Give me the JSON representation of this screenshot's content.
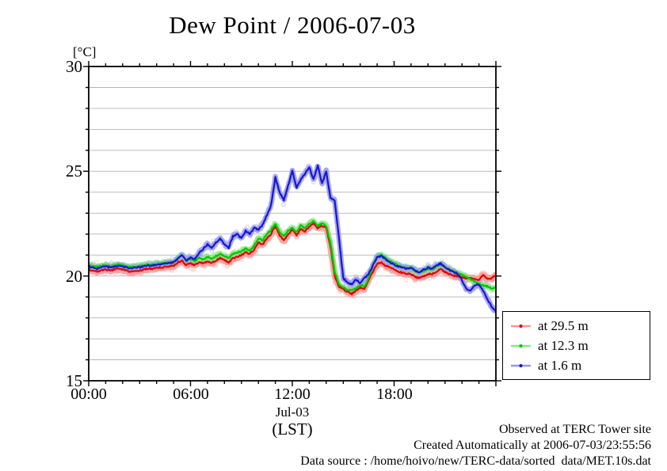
{
  "title": "Dew Point / 2006-07-03",
  "axis": {
    "unit_label": "[°C]",
    "y_ticks": [
      "30",
      "25",
      "20",
      "15"
    ],
    "x_ticks": [
      "00:00",
      "06:00",
      "12:00",
      "18:00"
    ],
    "x_date_label": "Jul-03",
    "x_tz_label": "(LST)"
  },
  "legend": [
    {
      "label": "at 29.5 m"
    },
    {
      "label": "at 12.3 m"
    },
    {
      "label": "at 1.6 m"
    }
  ],
  "footer": {
    "line1": "Observed at TERC Tower site",
    "line2": "Created Automatically at 2006-07-03/23:55:56",
    "line3": "Data source : /home/hoivo/new/TERC-data/sorted  data/MET.10s.dat"
  },
  "chart_data": {
    "type": "line",
    "title": "Dew Point / 2006-07-03",
    "ylabel": "[°C]",
    "xlabel": "Jul-03 (LST)",
    "ylim": [
      15,
      30
    ],
    "xlim_hours": [
      0,
      24
    ],
    "y_major_ticks": [
      15,
      20,
      25,
      30
    ],
    "y_minor_step": 1,
    "x_major_ticks_hours": [
      0,
      6,
      12,
      18,
      24
    ],
    "x_minor_step_hours": 1,
    "grid": "horizontal gridlines every 1 degC",
    "legend_position": "outside-bottom-right",
    "background": "#ffffff",
    "grid_color": "#b4b4b4",
    "frame_color": "#000000",
    "x_hours": [
      0,
      0.25,
      0.5,
      0.75,
      1,
      1.25,
      1.5,
      1.75,
      2,
      2.25,
      2.5,
      2.75,
      3,
      3.25,
      3.5,
      3.75,
      4,
      4.25,
      4.5,
      4.75,
      5,
      5.25,
      5.5,
      5.75,
      6,
      6.25,
      6.5,
      6.75,
      7,
      7.25,
      7.5,
      7.75,
      8,
      8.25,
      8.5,
      8.75,
      9,
      9.25,
      9.5,
      9.75,
      10,
      10.25,
      10.5,
      10.75,
      11,
      11.25,
      11.5,
      11.75,
      12,
      12.25,
      12.5,
      12.75,
      13,
      13.25,
      13.5,
      13.75,
      14,
      14.25,
      14.5,
      14.75,
      15,
      15.25,
      15.5,
      15.75,
      16,
      16.25,
      16.5,
      16.75,
      17,
      17.25,
      17.5,
      17.75,
      18,
      18.25,
      18.5,
      18.75,
      19,
      19.25,
      19.5,
      19.75,
      20,
      20.25,
      20.5,
      20.75,
      21,
      21.25,
      21.5,
      21.75,
      22,
      22.25,
      22.5,
      22.75,
      23,
      23.25,
      23.5,
      23.75,
      24
    ],
    "series": [
      {
        "name": "at 29.5 m",
        "color": "#e40000",
        "scatter_color": "#ff9393",
        "band_width": 8,
        "scatter_spread": 0.24,
        "values": [
          20.3,
          20.26,
          20.22,
          20.28,
          20.32,
          20.26,
          20.3,
          20.35,
          20.3,
          20.25,
          20.2,
          20.24,
          20.26,
          20.32,
          20.35,
          20.35,
          20.4,
          20.4,
          20.44,
          20.46,
          20.48,
          20.65,
          20.72,
          20.52,
          20.6,
          20.52,
          20.65,
          20.6,
          20.72,
          20.62,
          20.75,
          20.85,
          20.75,
          20.65,
          20.85,
          20.9,
          21.0,
          21.12,
          21.05,
          21.25,
          21.6,
          21.5,
          21.8,
          22.0,
          22.4,
          21.95,
          21.7,
          22.0,
          22.2,
          21.95,
          22.25,
          22.15,
          22.35,
          22.5,
          22.3,
          22.4,
          22.3,
          21.4,
          20.0,
          19.5,
          19.35,
          19.25,
          19.15,
          19.3,
          19.45,
          19.4,
          19.8,
          20.2,
          20.6,
          20.65,
          20.5,
          20.4,
          20.3,
          20.2,
          20.15,
          20.1,
          20.1,
          19.95,
          19.92,
          20.0,
          20.1,
          20.08,
          20.22,
          20.32,
          20.2,
          20.1,
          20.02,
          19.98,
          19.95,
          19.9,
          19.88,
          19.85,
          19.8,
          20.05,
          19.85,
          19.9,
          20.05
        ]
      },
      {
        "name": "at 12.3 m",
        "color": "#00c800",
        "scatter_color": "#86e886",
        "band_width": 6.5,
        "scatter_spread": 0.15,
        "values": [
          20.5,
          20.46,
          20.42,
          20.48,
          20.52,
          20.46,
          20.5,
          20.55,
          20.5,
          20.45,
          20.42,
          20.46,
          20.48,
          20.52,
          20.55,
          20.55,
          20.58,
          20.58,
          20.62,
          20.64,
          20.66,
          20.85,
          21.0,
          20.72,
          20.82,
          20.72,
          20.85,
          20.8,
          20.92,
          20.82,
          20.95,
          21.05,
          20.95,
          20.85,
          21.05,
          21.1,
          21.18,
          21.3,
          21.22,
          21.45,
          21.8,
          21.7,
          22.0,
          22.2,
          22.5,
          22.1,
          21.9,
          22.15,
          22.3,
          22.1,
          22.4,
          22.3,
          22.5,
          22.6,
          22.4,
          22.5,
          22.4,
          21.6,
          20.2,
          19.6,
          19.45,
          19.35,
          19.3,
          19.4,
          19.55,
          19.5,
          19.9,
          20.5,
          20.95,
          21.0,
          20.85,
          20.7,
          20.6,
          20.5,
          20.42,
          20.38,
          20.4,
          20.22,
          20.18,
          20.26,
          20.35,
          20.3,
          20.45,
          20.55,
          20.42,
          20.3,
          20.22,
          20.15,
          20.05,
          19.95,
          19.85,
          19.75,
          19.6,
          19.55,
          19.5,
          19.4,
          19.45
        ]
      },
      {
        "name": "at 1.6 m",
        "color": "#1616d2",
        "scatter_color": "#9696ee",
        "band_width": 6.5,
        "scatter_spread": 0.18,
        "values": [
          20.45,
          20.4,
          20.35,
          20.42,
          20.46,
          20.4,
          20.44,
          20.5,
          20.46,
          20.4,
          20.36,
          20.4,
          20.42,
          20.46,
          20.5,
          20.5,
          20.55,
          20.55,
          20.6,
          20.62,
          20.65,
          20.82,
          21.0,
          20.75,
          20.88,
          20.8,
          21.1,
          21.3,
          21.5,
          21.35,
          21.6,
          21.8,
          21.5,
          21.35,
          21.9,
          22.0,
          21.8,
          22.15,
          22.0,
          22.3,
          22.2,
          22.45,
          22.9,
          23.4,
          24.7,
          24.0,
          23.6,
          24.3,
          25.0,
          24.2,
          24.6,
          24.9,
          25.2,
          24.6,
          25.3,
          24.4,
          25.0,
          23.7,
          23.6,
          21.8,
          19.9,
          19.7,
          19.6,
          19.85,
          19.65,
          19.9,
          20.1,
          20.5,
          20.9,
          20.95,
          20.8,
          20.65,
          20.55,
          20.45,
          20.4,
          20.35,
          20.4,
          20.25,
          20.2,
          20.3,
          20.4,
          20.35,
          20.5,
          20.6,
          20.45,
          20.3,
          20.2,
          20.1,
          19.8,
          19.4,
          19.3,
          19.55,
          19.6,
          19.3,
          18.9,
          18.55,
          18.3
        ]
      }
    ]
  }
}
